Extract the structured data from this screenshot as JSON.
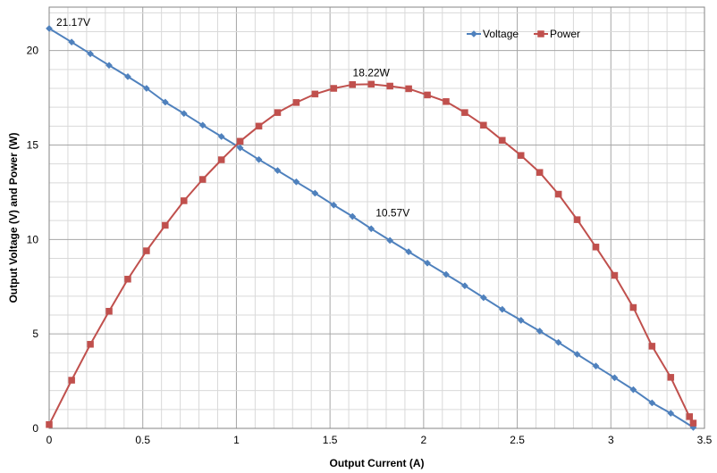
{
  "chart_data": {
    "type": "line",
    "title": "",
    "xlabel": "Output Current (A)",
    "ylabel": "Output Voltage (V) and Power (W)",
    "xlim": [
      0,
      3.5
    ],
    "ylim": [
      0,
      22.3
    ],
    "x_ticks": [
      0,
      0.5,
      1,
      1.5,
      2,
      2.5,
      3,
      3.5
    ],
    "x_tick_labels": [
      "0",
      "0.5",
      "1",
      "1.5",
      "2",
      "2.5",
      "3",
      "3.5"
    ],
    "y_ticks": [
      0,
      5,
      10,
      15,
      20
    ],
    "y_tick_labels": [
      "0",
      "5",
      "10",
      "15",
      "20"
    ],
    "grid": true,
    "legend_position": "top-right",
    "series": [
      {
        "name": "Voltage",
        "color": "#4F81BD",
        "marker": "diamond",
        "x": [
          0,
          0.12,
          0.22,
          0.32,
          0.42,
          0.52,
          0.62,
          0.72,
          0.82,
          0.92,
          1.02,
          1.12,
          1.22,
          1.32,
          1.42,
          1.52,
          1.62,
          1.72,
          1.82,
          1.92,
          2.02,
          2.12,
          2.22,
          2.32,
          2.42,
          2.52,
          2.62,
          2.72,
          2.82,
          2.92,
          3.02,
          3.12,
          3.22,
          3.32,
          3.44
        ],
        "y": [
          21.17,
          20.45,
          19.83,
          19.22,
          18.62,
          18.0,
          17.27,
          16.67,
          16.05,
          15.45,
          14.85,
          14.23,
          13.65,
          13.05,
          12.45,
          11.82,
          11.22,
          10.57,
          9.95,
          9.35,
          8.75,
          8.15,
          7.55,
          6.92,
          6.3,
          5.72,
          5.15,
          4.55,
          3.92,
          3.3,
          2.68,
          2.05,
          1.35,
          0.8,
          0.05
        ]
      },
      {
        "name": "Power",
        "color": "#C0504D",
        "marker": "square",
        "x": [
          0,
          0.12,
          0.22,
          0.32,
          0.42,
          0.52,
          0.62,
          0.72,
          0.82,
          0.92,
          1.02,
          1.12,
          1.22,
          1.32,
          1.42,
          1.52,
          1.62,
          1.72,
          1.82,
          1.92,
          2.02,
          2.12,
          2.22,
          2.32,
          2.42,
          2.52,
          2.62,
          2.72,
          2.82,
          2.92,
          3.02,
          3.12,
          3.22,
          3.32,
          3.42,
          3.44
        ],
        "y": [
          0.2,
          2.55,
          4.45,
          6.2,
          7.9,
          9.4,
          10.75,
          12.05,
          13.18,
          14.22,
          15.2,
          16.0,
          16.72,
          17.25,
          17.7,
          18.0,
          18.2,
          18.22,
          18.12,
          17.98,
          17.65,
          17.3,
          16.72,
          16.05,
          15.25,
          14.45,
          13.55,
          12.4,
          11.05,
          9.6,
          8.1,
          6.4,
          4.35,
          2.7,
          0.62,
          0.28
        ]
      }
    ],
    "annotations": [
      {
        "text": "21.17V",
        "x": 0,
        "y": 21.17
      },
      {
        "text": "18.22W",
        "x": 1.72,
        "y": 18.22
      },
      {
        "text": "10.57V",
        "x": 1.72,
        "y": 10.57
      }
    ]
  }
}
